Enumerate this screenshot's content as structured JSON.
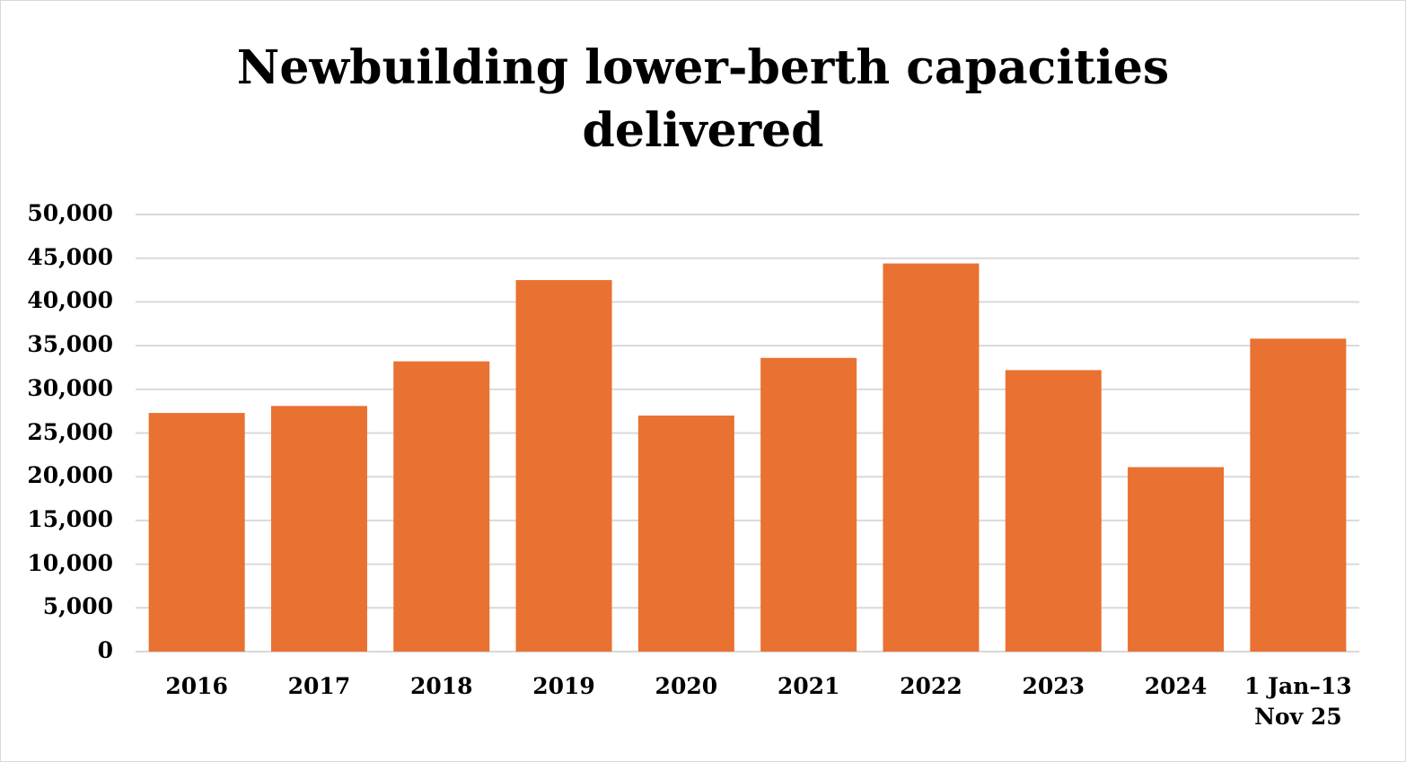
{
  "chart_data": {
    "type": "bar",
    "title_lines": [
      "Newbuilding lower-berth capacities",
      "delivered"
    ],
    "categories": [
      "2016",
      "2017",
      "2018",
      "2019",
      "2020",
      "2021",
      "2022",
      "2023",
      "2024",
      "1 Jan–13 Nov 25"
    ],
    "values": [
      27300,
      28100,
      33200,
      42500,
      27000,
      33600,
      44400,
      32200,
      21100,
      35800
    ],
    "ylim": [
      0,
      50000
    ],
    "yticks": [
      0,
      5000,
      10000,
      15000,
      20000,
      25000,
      30000,
      35000,
      40000,
      45000,
      50000
    ],
    "ytick_labels": [
      "0",
      "5,000",
      "10,000",
      "15,000",
      "20,000",
      "25,000",
      "30,000",
      "35,000",
      "40,000",
      "45,000",
      "50,000"
    ],
    "xlabel": "",
    "ylabel": "",
    "grid": true,
    "legend": "none",
    "colors": {
      "bar": "#E97132",
      "grid": "#d9d9d9"
    }
  }
}
